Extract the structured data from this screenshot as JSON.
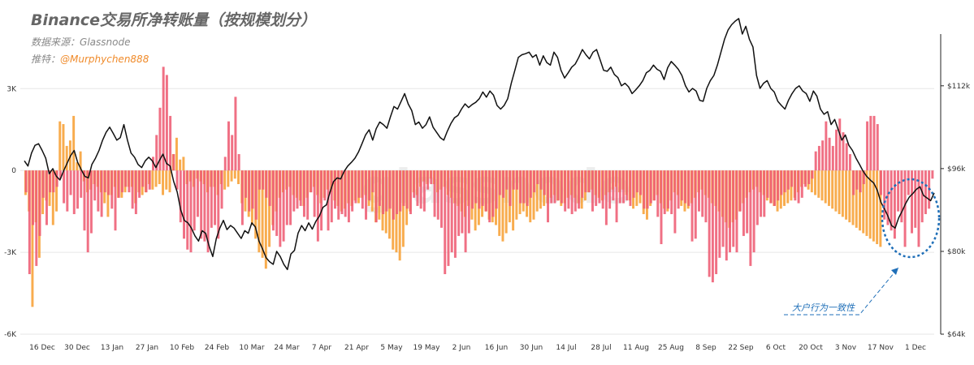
{
  "header": {
    "title": "Binance交易所净转账量（按规模划分）",
    "source_label": "数据来源：",
    "source_value": "Glassnode",
    "author_label": "推特：",
    "author_handle": "@Murphychen888"
  },
  "watermark": "glassnode",
  "annotation": "大户行为一致性",
  "colors": {
    "whale_bar": "#ee5c73",
    "retail_bar": "#f7a035",
    "price_line": "#111111",
    "annotation": "#1f6fb8"
  },
  "chart_data": {
    "type": "bar",
    "title": "Binance交易所净转账量（按规模划分）",
    "x_ticks": [
      "16 Dec",
      "30 Dec",
      "13 Jan",
      "27 Jan",
      "10 Feb",
      "24 Feb",
      "10 Mar",
      "24 Mar",
      "7 Apr",
      "21 Apr",
      "5 May",
      "19 May",
      "2 Jun",
      "16 Jun",
      "30 Jun",
      "14 Jul",
      "28 Jul",
      "11 Aug",
      "25 Aug",
      "8 Sep",
      "22 Sep",
      "6 Oct",
      "20 Oct",
      "3 Nov",
      "17 Nov",
      "1 Dec"
    ],
    "y_left": {
      "ticks": [
        "3K",
        "0",
        "-3K",
        "-6K"
      ],
      "values": [
        3000,
        0,
        -3000,
        -6000
      ],
      "range": [
        -6000,
        5000
      ]
    },
    "y_right": {
      "ticks": [
        "$112k",
        "$96k",
        "$80k",
        "$64k"
      ],
      "values": [
        112000,
        96000,
        80000,
        64000
      ],
      "range": [
        64000,
        122000
      ]
    },
    "grid": true,
    "series": [
      {
        "kind": "bar",
        "color": "#ee5c73",
        "values": [
          -800,
          -3800,
          -2000,
          -3500,
          -2400,
          -1000,
          -2000,
          -800,
          -800,
          -600,
          -300,
          -1200,
          -1500,
          -900,
          -1600,
          -1400,
          -1000,
          -2200,
          -3000,
          -2300,
          -1100,
          -1500,
          -1700,
          -800,
          -900,
          -1400,
          -2200,
          -1000,
          -800,
          -600,
          -800,
          -1400,
          -1600,
          -1000,
          -600,
          -800,
          -700,
          500,
          1300,
          2300,
          3800,
          3500,
          2000,
          600,
          -700,
          -1900,
          -2500,
          -2900,
          -3000,
          -2200,
          -1700,
          -2500,
          -2600,
          -3000,
          -2100,
          -2000,
          -2500,
          -1400,
          500,
          1800,
          1300,
          2700,
          600,
          -2000,
          -1000,
          -1500,
          -1400,
          -1800,
          -700,
          -700,
          -1000,
          -1300,
          -2200,
          -2400,
          -2800,
          -2600,
          -2000,
          -2000,
          -1500,
          -1400,
          -1300,
          -1700,
          -1800,
          -800,
          -1700,
          -2600,
          -2200,
          -1100,
          -2200,
          -1900,
          -1400,
          -1800,
          -1600,
          -1700,
          -1900,
          -1500,
          -1200,
          -1000,
          -1400,
          -1800,
          -1100,
          -800,
          -1900,
          -1300,
          -1600,
          -1500,
          -1400,
          -1800,
          -1600,
          -1500,
          -1300,
          -1400,
          -1600,
          -1000,
          -1300,
          -1400,
          -1500,
          -700,
          -500,
          -1700,
          -1800,
          -2100,
          -3800,
          -3500,
          -3000,
          -3200,
          -2400,
          -2300,
          -3000,
          -2300,
          -1400,
          -1200,
          -1400,
          -1300,
          -1500,
          -1900,
          -1700,
          -1400,
          -900,
          -1000,
          -700,
          -1300,
          -700,
          -700,
          -1200,
          -1200,
          -1300,
          -1000,
          -800,
          -500,
          -700,
          -900,
          -1900,
          -1200,
          -1200,
          -1100,
          -1200,
          -1500,
          -1400,
          -1600,
          -1500,
          -1400,
          -1000,
          -800,
          -800,
          -1500,
          -1300,
          -1200,
          -1400,
          -2000,
          -1400,
          -1100,
          -1900,
          -1200,
          -1200,
          -1100,
          -1300,
          -1000,
          -800,
          -900,
          -1400,
          -1400,
          -1200,
          -1100,
          -1700,
          -2700,
          -1600,
          -1400,
          -1600,
          -2300,
          -1400,
          -1100,
          -1200,
          -1300,
          -2600,
          -2500,
          -1500,
          -1700,
          -1900,
          -3900,
          -4100,
          -3800,
          -3200,
          -2800,
          -3300,
          -3000,
          -2800,
          -3000,
          -1500,
          -2400,
          -2300,
          -3500,
          -3000,
          -2000,
          -1700,
          -1700,
          -1000,
          -1200,
          -1300,
          -1100,
          -900,
          -800,
          -700,
          -600,
          -1100,
          -1200,
          -1000,
          -600,
          -500,
          -300,
          700,
          900,
          1100,
          1800,
          1200,
          900,
          1500,
          1900,
          1400,
          1000,
          600,
          -900,
          -700,
          -800,
          -500,
          1800,
          2000,
          2000,
          1700,
          -900,
          -1800,
          -2000,
          -2200,
          -2500,
          -1500,
          -1900,
          -2800,
          -900,
          -2300,
          -2100,
          -2800,
          -1900,
          -1600,
          -1400,
          -300
        ],
        "name": ""
      },
      {
        "kind": "bar",
        "color": "#f7a035",
        "values": [
          -900,
          -1500,
          -5000,
          -1900,
          -3200,
          -1600,
          -1100,
          -1300,
          -2000,
          -1500,
          1800,
          1700,
          900,
          1100,
          2000,
          300,
          700,
          -400,
          -800,
          -700,
          -500,
          -600,
          -800,
          -1200,
          -1700,
          -900,
          -600,
          -1000,
          -1000,
          -800,
          -600,
          -600,
          -1200,
          -800,
          -900,
          -800,
          -500,
          -700,
          -600,
          -500,
          -900,
          -700,
          -800,
          600,
          1200,
          400,
          500,
          -500,
          -400,
          -600,
          -300,
          -400,
          -500,
          -800,
          -600,
          -600,
          -900,
          -500,
          -700,
          -600,
          -400,
          -300,
          -500,
          -1200,
          -1500,
          -1700,
          -2000,
          -2500,
          -3000,
          -3200,
          -3600,
          -2800,
          -2000,
          -1500,
          -1000,
          -800,
          -700,
          -600,
          -900,
          -1000,
          -1100,
          -1300,
          -1000,
          -800,
          -600,
          -900,
          -1200,
          -1000,
          -700,
          -800,
          -1100,
          -1300,
          -1500,
          -1400,
          -1200,
          -1300,
          -1100,
          -1200,
          -1000,
          -900,
          -1300,
          -1500,
          -1900,
          -1800,
          -2200,
          -2300,
          -2500,
          -2900,
          -3000,
          -3300,
          -2800,
          -2000,
          -1500,
          -800,
          -900,
          -600,
          -400,
          -500,
          -300,
          -500,
          -800,
          -700,
          -600,
          -900,
          -1000,
          -1200,
          -1300,
          -1500,
          -1700,
          -1300,
          -1800,
          -2200,
          -2000,
          -1700,
          -1500,
          -1800,
          -1900,
          -2000,
          -2400,
          -2600,
          -2300,
          -1900,
          -2200,
          -1800,
          -1600,
          -1500,
          -1700,
          -1900,
          -1800,
          -1500,
          -1400,
          -1300,
          -1200,
          -1000,
          -900,
          -1100,
          -1300,
          -1200,
          -1000,
          -900,
          -1000,
          -1200,
          -1400,
          -1100,
          -800,
          -700,
          -900,
          -1000,
          -1100,
          -900,
          -800,
          -700,
          -600,
          -800,
          -700,
          -900,
          -1100,
          -1400,
          -1300,
          -1200,
          -1600,
          -1800,
          -1300,
          -1100,
          -900,
          -1200,
          -1400,
          -1500,
          -1100,
          -800,
          -900,
          -1300,
          -1500,
          -1400,
          -1200,
          -1000,
          -800,
          -700,
          -900,
          -1000,
          -1200,
          -1300,
          -1500,
          -1700,
          -1900,
          -2100,
          -1900,
          -1800,
          -1500,
          -1200,
          -1000,
          -800,
          -700,
          -600,
          -800,
          -900,
          -1100,
          -1200,
          -1300,
          -1500,
          -1400,
          -1300,
          -1200,
          -1100,
          -1000,
          -800,
          -600,
          -500,
          -700,
          -800,
          -900,
          -1000,
          -1100,
          -1200,
          -1300,
          -1400,
          -1500,
          -1600,
          -1700,
          -1800,
          -1900,
          -2000,
          -2100,
          -2200,
          -2300,
          -2400,
          -2500,
          -2600,
          -2700,
          -2800
        ],
        "name": ""
      },
      {
        "kind": "line",
        "color": "#111111",
        "y_axis": "right",
        "values": [
          97500,
          96500,
          99000,
          100500,
          100800,
          99500,
          98000,
          95000,
          96000,
          94500,
          93800,
          95500,
          97000,
          98500,
          99500,
          97200,
          95800,
          94500,
          94200,
          96800,
          98000,
          99500,
          101500,
          103000,
          104000,
          102800,
          101500,
          102000,
          104500,
          101500,
          99000,
          98200,
          96800,
          96200,
          97500,
          98200,
          97500,
          96200,
          97600,
          98800,
          97000,
          96500,
          93500,
          91500,
          88000,
          86000,
          85500,
          84500,
          83000,
          82000,
          84000,
          83500,
          81000,
          79000,
          82500,
          84500,
          86000,
          84200,
          85000,
          84500,
          83500,
          82500,
          84000,
          83500,
          85500,
          84700,
          82000,
          80500,
          78800,
          78000,
          77500,
          80000,
          79000,
          77500,
          76500,
          79500,
          80200,
          83500,
          85000,
          84000,
          85500,
          84300,
          85800,
          86800,
          88500,
          89000,
          91500,
          93500,
          94200,
          94000,
          95500,
          96500,
          97200,
          98000,
          99200,
          100800,
          102500,
          103500,
          101500,
          103700,
          105000,
          104500,
          103800,
          106000,
          108000,
          107500,
          109000,
          110500,
          108500,
          107200,
          104500,
          105000,
          103800,
          104500,
          106000,
          104000,
          103000,
          102000,
          101500,
          103200,
          104700,
          105800,
          106300,
          107500,
          108500,
          107800,
          108400,
          108800,
          109500,
          110800,
          109800,
          111000,
          110200,
          108200,
          107500,
          108200,
          109500,
          112500,
          115000,
          117500,
          118000,
          118200,
          118500,
          117500,
          118000,
          116000,
          117800,
          116500,
          116000,
          118500,
          117500,
          115000,
          113500,
          114500,
          115600,
          116200,
          117500,
          119000,
          118000,
          117200,
          118500,
          119000,
          117000,
          115000,
          114800,
          115600,
          114200,
          113600,
          112000,
          112500,
          111800,
          110500,
          111200,
          112000,
          113000,
          114500,
          115000,
          116000,
          115200,
          114800,
          113200,
          115500,
          116700,
          116000,
          115200,
          114000,
          112000,
          110800,
          111500,
          111000,
          109200,
          109000,
          111500,
          113000,
          114000,
          116000,
          118500,
          121000,
          122800,
          123800,
          124500,
          125000,
          122000,
          123500,
          121000,
          119500,
          114000,
          111500,
          112500,
          113000,
          111500,
          110800,
          109000,
          108200,
          107500,
          109200,
          110500,
          111500,
          112000,
          111000,
          110500,
          109000,
          111000,
          110000,
          107500,
          106500,
          107000,
          104500,
          105500,
          103500,
          101500,
          102500,
          100500,
          99500,
          98000,
          96800,
          95500,
          94500,
          93800,
          93200,
          91800,
          89500,
          88200,
          86800,
          85000,
          84500,
          86500,
          87800,
          89300,
          90500,
          91200,
          92000,
          92500,
          90800,
          90300,
          89800,
          91300
        ]
      }
    ]
  }
}
